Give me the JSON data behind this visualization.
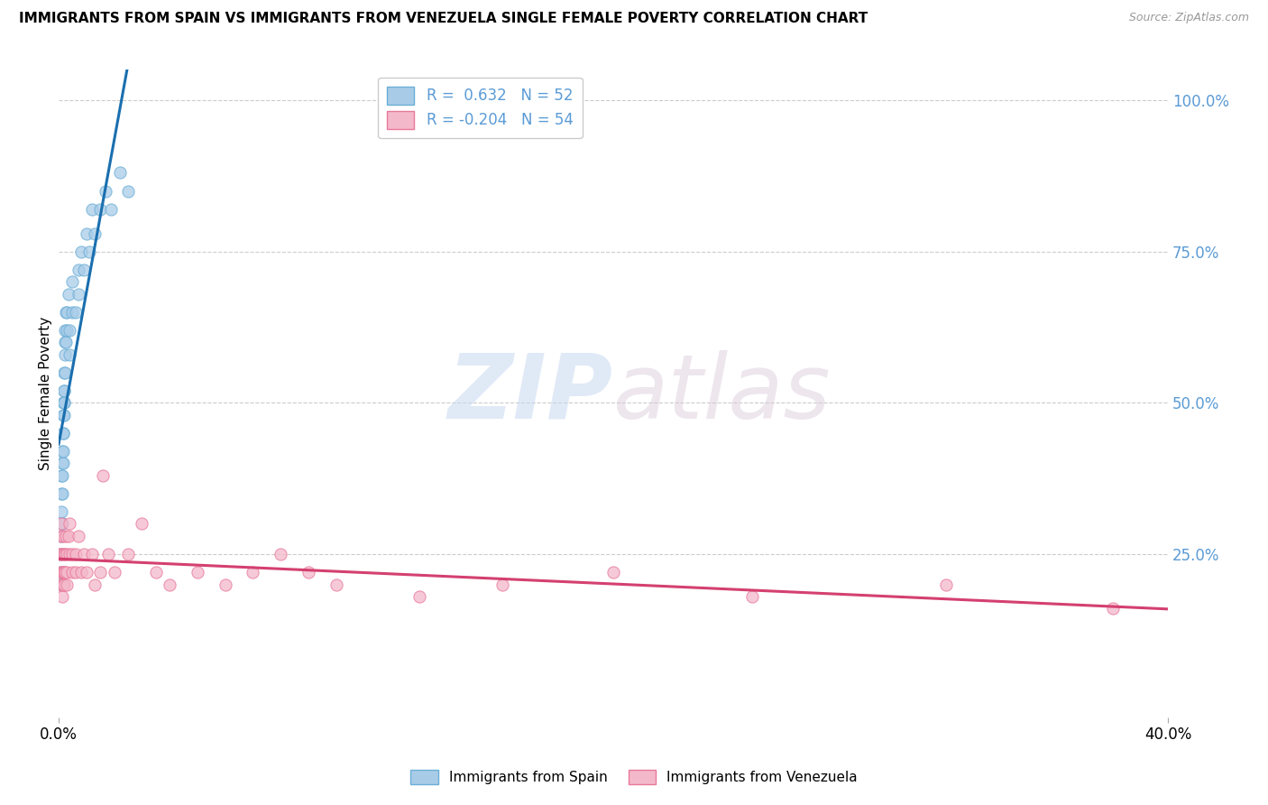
{
  "title": "IMMIGRANTS FROM SPAIN VS IMMIGRANTS FROM VENEZUELA SINGLE FEMALE POVERTY CORRELATION CHART",
  "source": "Source: ZipAtlas.com",
  "ylabel": "Single Female Poverty",
  "series": [
    {
      "name": "Immigrants from Spain",
      "R": 0.632,
      "N": 52,
      "color": "#a8cce8",
      "edge_color": "#6baed6",
      "trend_color": "#1a6faf",
      "x": [
        0.0005,
        0.0006,
        0.0007,
        0.0008,
        0.0009,
        0.001,
        0.001,
        0.001,
        0.0012,
        0.0013,
        0.0013,
        0.0014,
        0.0014,
        0.0015,
        0.0015,
        0.0016,
        0.0016,
        0.0017,
        0.0017,
        0.0018,
        0.0018,
        0.0019,
        0.002,
        0.002,
        0.002,
        0.0022,
        0.0022,
        0.0023,
        0.0024,
        0.0025,
        0.0025,
        0.003,
        0.003,
        0.0035,
        0.004,
        0.004,
        0.005,
        0.005,
        0.006,
        0.007,
        0.007,
        0.008,
        0.009,
        0.01,
        0.011,
        0.012,
        0.013,
        0.015,
        0.017,
        0.019,
        0.022,
        0.025
      ],
      "y": [
        0.22,
        0.2,
        0.25,
        0.28,
        0.3,
        0.32,
        0.35,
        0.38,
        0.3,
        0.35,
        0.4,
        0.38,
        0.42,
        0.4,
        0.45,
        0.42,
        0.48,
        0.45,
        0.5,
        0.48,
        0.52,
        0.5,
        0.5,
        0.55,
        0.52,
        0.55,
        0.6,
        0.58,
        0.62,
        0.6,
        0.65,
        0.62,
        0.65,
        0.68,
        0.58,
        0.62,
        0.65,
        0.7,
        0.65,
        0.72,
        0.68,
        0.75,
        0.72,
        0.78,
        0.75,
        0.82,
        0.78,
        0.82,
        0.85,
        0.82,
        0.88,
        0.85
      ]
    },
    {
      "name": "Immigrants from Venezuela",
      "R": -0.204,
      "N": 54,
      "color": "#f4b8cb",
      "edge_color": "#e8799a",
      "trend_color": "#d44070",
      "x": [
        0.0003,
        0.0005,
        0.0007,
        0.0009,
        0.001,
        0.001,
        0.0012,
        0.0013,
        0.0014,
        0.0015,
        0.0016,
        0.0017,
        0.0018,
        0.002,
        0.002,
        0.0022,
        0.0023,
        0.0025,
        0.003,
        0.003,
        0.003,
        0.0035,
        0.004,
        0.004,
        0.005,
        0.005,
        0.006,
        0.006,
        0.007,
        0.008,
        0.009,
        0.01,
        0.012,
        0.013,
        0.015,
        0.016,
        0.018,
        0.02,
        0.025,
        0.03,
        0.035,
        0.04,
        0.05,
        0.06,
        0.07,
        0.08,
        0.09,
        0.1,
        0.13,
        0.16,
        0.2,
        0.25,
        0.32,
        0.38
      ],
      "y": [
        0.25,
        0.22,
        0.28,
        0.2,
        0.25,
        0.3,
        0.22,
        0.18,
        0.25,
        0.22,
        0.2,
        0.28,
        0.22,
        0.25,
        0.2,
        0.22,
        0.25,
        0.28,
        0.2,
        0.25,
        0.22,
        0.28,
        0.25,
        0.3,
        0.22,
        0.25,
        0.22,
        0.25,
        0.28,
        0.22,
        0.25,
        0.22,
        0.25,
        0.2,
        0.22,
        0.38,
        0.25,
        0.22,
        0.25,
        0.3,
        0.22,
        0.2,
        0.22,
        0.2,
        0.22,
        0.25,
        0.22,
        0.2,
        0.18,
        0.2,
        0.22,
        0.18,
        0.2,
        0.16
      ]
    }
  ],
  "xlim": [
    0.0,
    0.4
  ],
  "ylim": [
    -0.02,
    1.05
  ],
  "watermark_zip": "ZIP",
  "watermark_atlas": "atlas",
  "background": "#ffffff",
  "grid_color": "#cccccc",
  "title_fontsize": 11,
  "axis_color": "#5b9bd5",
  "legend_R0": "R =  0.632   N = 52",
  "legend_R1": "R = -0.204   N = 54"
}
